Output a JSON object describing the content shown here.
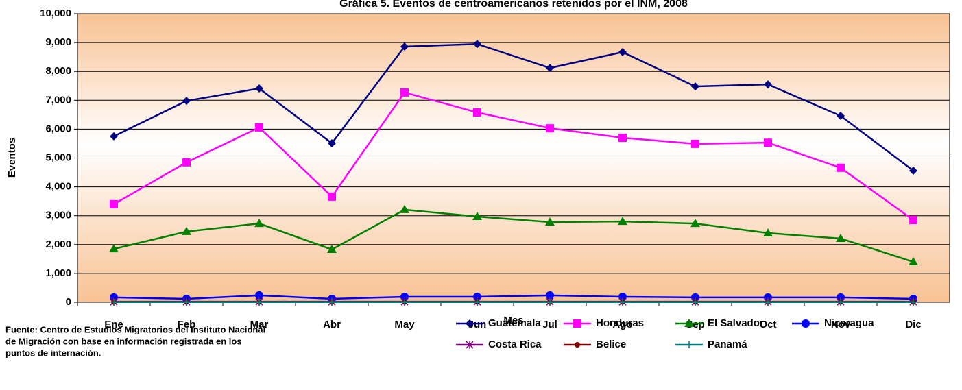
{
  "chart_data": {
    "type": "line",
    "title": "Gráfica 5. Eventos de centroamericanos retenidos por el INM, 2008",
    "y_label": "Eventos",
    "x_label": "Mes",
    "source_lines": [
      "Fuente: Centro de Estudios Migratorios del Instituto Nacional",
      "de Migración con base en información registrada en los",
      "puntos de internación."
    ],
    "categories": [
      "Ene",
      "Feb",
      "Mar",
      "Abr",
      "May",
      "Jun",
      "Jul",
      "Ago",
      "Sep",
      "Oct",
      "Nov",
      "Dic"
    ],
    "ylim": [
      0,
      10000
    ],
    "yticks": [
      0,
      {
        "value": 1000,
        "label": "1,000"
      },
      {
        "value": 2000,
        "label": "2,000"
      },
      {
        "value": 3000,
        "label": "3,000"
      },
      {
        "value": 4000,
        "label": "4,000"
      },
      {
        "value": 5000,
        "label": "5,000"
      },
      {
        "value": 6000,
        "label": "6,000"
      },
      {
        "value": 7000,
        "label": "7,000"
      },
      {
        "value": 8000,
        "label": "8,000"
      },
      {
        "value": 9000,
        "label": "9,000"
      },
      {
        "value": 10000,
        "label": "10,000"
      }
    ],
    "grid": true,
    "series": [
      {
        "name": "Guatemala",
        "color": "#000080",
        "marker": "diamond",
        "values": [
          5750,
          6980,
          7410,
          5510,
          8860,
          8950,
          8120,
          8670,
          7480,
          7550,
          6460,
          4560
        ]
      },
      {
        "name": "Honduras",
        "color": "#ff00ff",
        "marker": "square",
        "values": [
          3400,
          4850,
          6060,
          3660,
          7270,
          6580,
          6030,
          5700,
          5490,
          5530,
          4660,
          2850
        ]
      },
      {
        "name": "El Salvador",
        "color": "#008000",
        "marker": "triangle",
        "values": [
          1850,
          2450,
          2730,
          1830,
          3210,
          2970,
          2780,
          2800,
          2730,
          2400,
          2210,
          1400
        ]
      },
      {
        "name": "Nicaragua",
        "color": "#0000ff",
        "marker": "circle",
        "values": [
          170,
          120,
          240,
          120,
          190,
          190,
          240,
          190,
          170,
          170,
          170,
          120
        ]
      },
      {
        "name": "Costa Rica",
        "color": "#800080",
        "marker": "asterisk",
        "values": [
          20,
          20,
          20,
          20,
          20,
          20,
          20,
          20,
          20,
          20,
          20,
          20
        ]
      },
      {
        "name": "Belice",
        "color": "#800000",
        "marker": "dot",
        "values": [
          10,
          10,
          10,
          10,
          10,
          10,
          10,
          10,
          10,
          10,
          10,
          10
        ]
      },
      {
        "name": "Panamá",
        "color": "#008080",
        "marker": "plus",
        "values": [
          5,
          5,
          5,
          5,
          5,
          5,
          5,
          5,
          5,
          5,
          5,
          5
        ]
      }
    ]
  }
}
